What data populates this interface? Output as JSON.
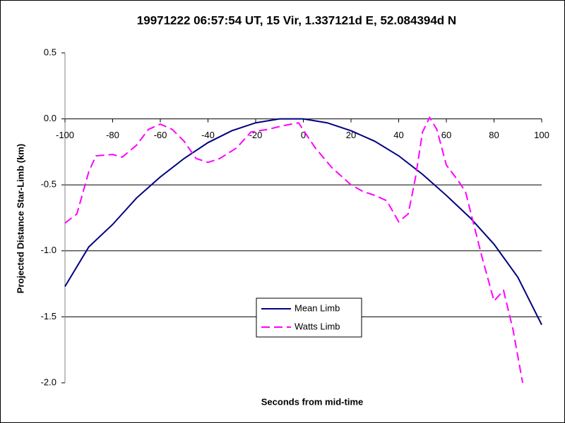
{
  "chart_data": {
    "type": "line",
    "title": "19971222 06:57:54 UT, 15 Vir, 1.337121d E, 52.084394d N",
    "x_label": "Seconds from mid-time",
    "y_label": "Projected Distance Star-Limb (km)",
    "xlim": [
      -100,
      100
    ],
    "xticks": [
      -100,
      -80,
      -60,
      -40,
      -20,
      0,
      20,
      40,
      60,
      80,
      100
    ],
    "ylim": [
      -2.0,
      0.5
    ],
    "yticks": [
      0.5,
      {
        "value": 0,
        "label": "0.0"
      },
      -0.5,
      {
        "value": -1,
        "label": "-1.0"
      },
      -1.5,
      {
        "value": -2,
        "label": "-2.0"
      }
    ],
    "grid": true,
    "legend": "inside-lower-center",
    "series": [
      {
        "name": "Mean Limb",
        "color": "#000080",
        "dash": false,
        "x": [
          -100,
          -90,
          -80,
          -70,
          -60,
          -50,
          -40,
          -30,
          -20,
          -10,
          0,
          10,
          20,
          30,
          40,
          50,
          60,
          70,
          80,
          90,
          100
        ],
        "values": [
          -1.27,
          -0.97,
          -0.8,
          -0.6,
          -0.44,
          -0.3,
          -0.18,
          -0.09,
          -0.03,
          0.0,
          0.0,
          -0.03,
          -0.09,
          -0.17,
          -0.28,
          -0.42,
          -0.58,
          -0.75,
          -0.95,
          -1.2,
          -1.56
        ]
      },
      {
        "name": "Watts Limb",
        "color": "#ff00ff",
        "dash": true,
        "x": [
          -100,
          -95,
          -90,
          -87,
          -80,
          -76,
          -70,
          -65,
          -60,
          -55,
          -50,
          -45,
          -40,
          -35,
          -28,
          -22,
          -15,
          -8,
          -2,
          5,
          12,
          20,
          25,
          30,
          35,
          40,
          44,
          47,
          50,
          53,
          56,
          60,
          65,
          68,
          75,
          80,
          84,
          88,
          92
        ],
        "values": [
          -0.79,
          -0.72,
          -0.4,
          -0.28,
          -0.27,
          -0.29,
          -0.2,
          -0.08,
          -0.04,
          -0.08,
          -0.17,
          -0.3,
          -0.33,
          -0.3,
          -0.22,
          -0.1,
          -0.08,
          -0.05,
          -0.03,
          -0.22,
          -0.37,
          -0.5,
          -0.55,
          -0.58,
          -0.62,
          -0.78,
          -0.72,
          -0.45,
          -0.1,
          0.01,
          -0.08,
          -0.35,
          -0.47,
          -0.55,
          -1.05,
          -1.38,
          -1.3,
          -1.6,
          -2.0
        ]
      }
    ]
  }
}
